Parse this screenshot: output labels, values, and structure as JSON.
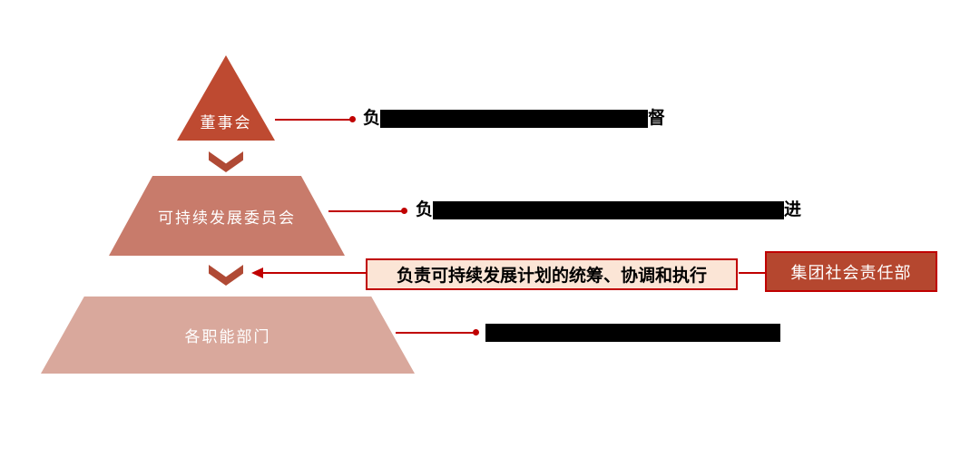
{
  "colors": {
    "pyramid_top": "#be4a31",
    "pyramid_mid": "#c87b6b",
    "pyramid_bottom": "#d9a89c",
    "chevron": "#b04a35",
    "connector": "#c00000",
    "callout_fill": "#fbe5d6",
    "callout_border": "#c00000",
    "department_fill": "#b5472f",
    "department_border": "#c00000",
    "redaction": "#000000"
  },
  "pyramid": {
    "levels": [
      {
        "label": "董事会"
      },
      {
        "label": "可持续发展委员会"
      },
      {
        "label": "各职能部门"
      }
    ]
  },
  "annotations": {
    "board": {
      "prefix": "负",
      "suffix": "督",
      "redacted": true
    },
    "committee": {
      "prefix": "负",
      "suffix": "进",
      "redacted": true
    },
    "departments": {
      "prefix": "",
      "suffix": "",
      "redacted": true
    }
  },
  "callout": {
    "responsibility": "负责可持续发展计划的统筹、协调和执行",
    "department": "集团社会责任部"
  }
}
